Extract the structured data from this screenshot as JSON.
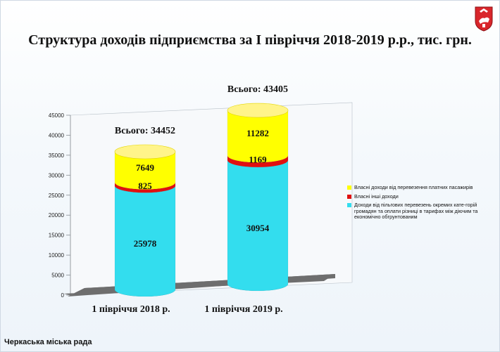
{
  "title": "Структура доходів підприємства за І півріччя 2018-2019 р.р., тис. грн.",
  "footer": "Черкаська міська рада",
  "logo_icon": "city-coat-of-arms-icon",
  "colors": {
    "passenger": "#ffff00",
    "other": "#e01010",
    "subsidy": "#33ddee",
    "floor": "#6e6e6e"
  },
  "legend": [
    {
      "label": "Власні доходи від перевезення платних пасажирів",
      "color": "#ffff00"
    },
    {
      "label": "Власні інші доходи",
      "color": "#e01010"
    },
    {
      "label": "Доходи від пільгових перевезень окремих кате-горій громадян та оплати різниці в тарифах між діючим та економічно обгрунтованим",
      "color": "#33ddee"
    }
  ],
  "chart_data": {
    "type": "bar",
    "stacked": true,
    "shape": "cylinder-3d",
    "categories": [
      "1 півріччя 2018 р.",
      "1 півріччя 2019 р."
    ],
    "series": [
      {
        "name": "Доходи від пільгових перевезень окремих кате-горій громадян та оплати різниці в тарифах між діючим та економічно обгрунтованим",
        "values": [
          25978,
          30954
        ]
      },
      {
        "name": "Власні інші доходи",
        "values": [
          825,
          1169
        ]
      },
      {
        "name": "Власні доходи від перевезення платних пасажирів",
        "values": [
          7649,
          11282
        ]
      }
    ],
    "totals": [
      "Всього: 34452",
      "Всього: 43405"
    ],
    "ylim": [
      0,
      45000
    ],
    "yticks": [
      0,
      5000,
      10000,
      15000,
      20000,
      25000,
      30000,
      35000,
      40000,
      45000
    ],
    "grid": false,
    "legend_position": "right"
  }
}
